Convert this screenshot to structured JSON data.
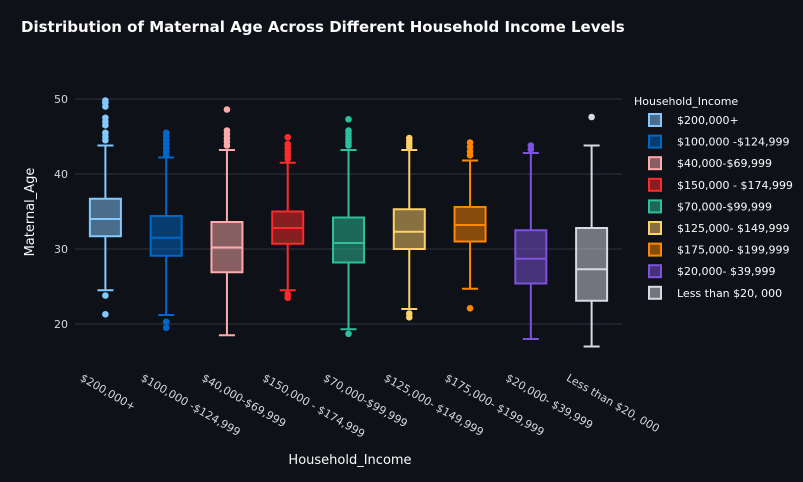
{
  "chart_data": {
    "type": "box",
    "title": "Distribution of Maternal Age Across Different Household Income Levels",
    "xlabel": "Household_Income",
    "ylabel": "Maternal_Age",
    "ylim": [
      17,
      51
    ],
    "yticks": [
      20,
      30,
      40,
      50
    ],
    "grid": true,
    "legend_title": "Household_Income",
    "legend_position": "right",
    "categories": [
      "$200,000+",
      "$100,000 -$124,999",
      "$40,000-$69,999",
      "$150,000 - $174,999",
      "$70,000-$99,999",
      "$125,000- $149,999",
      "$175,000- $199,999",
      "$20,000- $39,999",
      "Less than $20, 000"
    ],
    "series": [
      {
        "name": "$200,000+",
        "color": "#83c9ff",
        "lower_fence": 24.5,
        "q1": 31.7,
        "median": 34.0,
        "q3": 36.7,
        "upper_fence": 43.8,
        "outliers": [
          21.3,
          23.8,
          44.5,
          45.0,
          45.5,
          46.5,
          47.0,
          47.5,
          49.0,
          49.5,
          49.8
        ]
      },
      {
        "name": "$100,000 -$124,999",
        "color": "#0068c9",
        "lower_fence": 21.2,
        "q1": 29.1,
        "median": 31.5,
        "q3": 34.4,
        "upper_fence": 42.2,
        "outliers": [
          19.5,
          20.3,
          42.5,
          43.0,
          43.5,
          44.0,
          44.5,
          45.0,
          45.5
        ]
      },
      {
        "name": "$40,000-$69,999",
        "color": "#ffabab",
        "lower_fence": 18.5,
        "q1": 26.9,
        "median": 30.2,
        "q3": 33.6,
        "upper_fence": 43.2,
        "outliers": [
          43.8,
          44.3,
          44.8,
          45.3,
          45.8,
          48.6
        ]
      },
      {
        "name": "$150,000 - $174,999",
        "color": "#ff2b2b",
        "lower_fence": 24.5,
        "q1": 30.7,
        "median": 32.8,
        "q3": 35.0,
        "upper_fence": 41.5,
        "outliers": [
          23.5,
          24.0,
          42.0,
          42.5,
          43.0,
          43.5,
          44.0,
          44.9
        ]
      },
      {
        "name": "$70,000-$99,999",
        "color": "#2ebf9c",
        "lower_fence": 19.3,
        "q1": 28.2,
        "median": 30.8,
        "q3": 34.2,
        "upper_fence": 43.2,
        "outliers": [
          18.7,
          43.8,
          44.2,
          44.6,
          45.0,
          45.4,
          45.8,
          47.3
        ]
      },
      {
        "name": "$125,000- $149,999",
        "color": "#ffd16a",
        "lower_fence": 22.0,
        "q1": 30.0,
        "median": 32.3,
        "q3": 35.3,
        "upper_fence": 43.2,
        "outliers": [
          20.9,
          21.4,
          43.6,
          44.0,
          44.4,
          44.8
        ]
      },
      {
        "name": "$175,000- $199,999",
        "color": "#ff8700",
        "lower_fence": 24.7,
        "q1": 31.0,
        "median": 33.2,
        "q3": 35.6,
        "upper_fence": 41.8,
        "outliers": [
          22.1,
          42.5,
          43.0,
          43.6,
          44.2
        ]
      },
      {
        "name": "$20,000- $39,999",
        "color": "#7d53de",
        "lower_fence": 18.0,
        "q1": 25.4,
        "median": 28.7,
        "q3": 32.5,
        "upper_fence": 42.8,
        "outliers": [
          43.3,
          43.8
        ]
      },
      {
        "name": "Less than $20, 000",
        "color": "#d5dae5",
        "lower_fence": 17.0,
        "q1": 23.1,
        "median": 27.3,
        "q3": 32.8,
        "upper_fence": 43.8,
        "outliers": [
          47.6
        ]
      }
    ]
  }
}
